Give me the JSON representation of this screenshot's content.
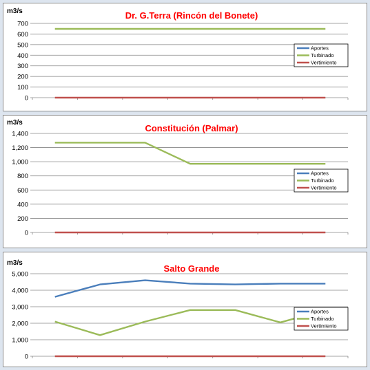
{
  "chart_data": [
    {
      "type": "line",
      "title": "Dr. G.Terra (Rincón del Bonete)",
      "ylabel": "m3/s",
      "ylim": [
        0,
        700
      ],
      "yticks": [
        0,
        100,
        200,
        300,
        400,
        500,
        600,
        700
      ],
      "ytick_labels": [
        "0",
        "100",
        "200",
        "300",
        "400",
        "500",
        "600",
        "700"
      ],
      "x": [
        0,
        1,
        2,
        3,
        4,
        5,
        6
      ],
      "grid": true,
      "legend": "right",
      "series": [
        {
          "name": "Aportes",
          "color": "#4a7ebb",
          "values": [
            null,
            null,
            null,
            null,
            null,
            null,
            null
          ]
        },
        {
          "name": "Turbinado",
          "color": "#9bbb59",
          "values": [
            648,
            648,
            648,
            648,
            648,
            648,
            648
          ]
        },
        {
          "name": "Vertimiento",
          "color": "#c0504d",
          "values": [
            0,
            0,
            0,
            0,
            0,
            0,
            0
          ]
        }
      ]
    },
    {
      "type": "line",
      "title": "Constitución (Palmar)",
      "ylabel": "m3/s",
      "ylim": [
        0,
        1400
      ],
      "yticks": [
        0,
        200,
        400,
        600,
        800,
        1000,
        1200,
        1400
      ],
      "ytick_labels": [
        "0",
        "200",
        "400",
        "600",
        "800",
        "1,000",
        "1,200",
        "1,400"
      ],
      "x": [
        0,
        1,
        2,
        3,
        4,
        5,
        6
      ],
      "grid": true,
      "legend": "right",
      "series": [
        {
          "name": "Aportes",
          "color": "#4a7ebb",
          "values": [
            null,
            null,
            null,
            null,
            null,
            null,
            null
          ]
        },
        {
          "name": "Turbinado",
          "color": "#9bbb59",
          "values": [
            1270,
            1270,
            1270,
            970,
            970,
            970,
            970
          ]
        },
        {
          "name": "Vertimiento",
          "color": "#c0504d",
          "values": [
            0,
            0,
            0,
            0,
            0,
            0,
            0
          ]
        }
      ]
    },
    {
      "type": "line",
      "title": "Salto Grande",
      "ylabel": "m3/s",
      "ylim": [
        0,
        5000
      ],
      "yticks": [
        0,
        1000,
        2000,
        3000,
        4000,
        5000
      ],
      "ytick_labels": [
        "0",
        "1,000",
        "2,000",
        "3,000",
        "4,000",
        "5,000"
      ],
      "x": [
        0,
        1,
        2,
        3,
        4,
        5,
        6
      ],
      "grid": true,
      "legend": "right",
      "series": [
        {
          "name": "Aportes",
          "color": "#4a7ebb",
          "values": [
            3600,
            4350,
            4600,
            4400,
            4350,
            4400,
            4400
          ]
        },
        {
          "name": "Turbinado",
          "color": "#9bbb59",
          "values": [
            2100,
            1280,
            2100,
            2800,
            2800,
            2050,
            2800
          ]
        },
        {
          "name": "Vertimiento",
          "color": "#c0504d",
          "values": [
            0,
            0,
            0,
            0,
            0,
            0,
            0
          ]
        }
      ]
    }
  ]
}
